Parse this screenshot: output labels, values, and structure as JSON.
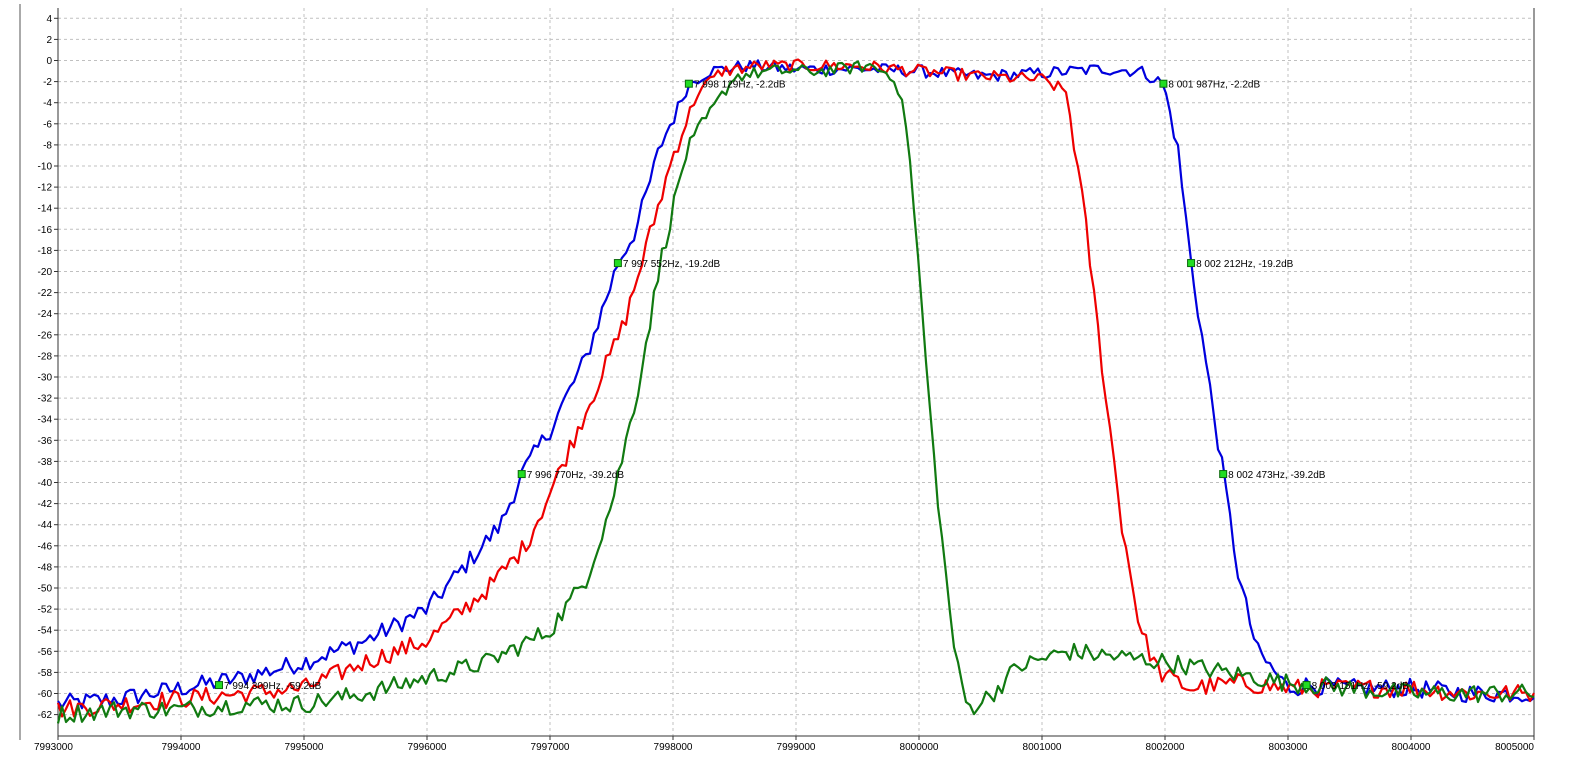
{
  "chart_data": {
    "type": "line",
    "title": "",
    "xlabel": "",
    "ylabel": "",
    "xlim": [
      7993000,
      8005000
    ],
    "ylim": [
      -64,
      5
    ],
    "grid": true,
    "legend": "none",
    "x_ticks": [
      "7993000",
      "7994000",
      "7995000",
      "7996000",
      "7997000",
      "7998000",
      "7999000",
      "8000000",
      "8001000",
      "8002000",
      "8003000",
      "8004000",
      "8005000"
    ],
    "y_ticks": [
      "4",
      "2",
      "0",
      "-2",
      "-4",
      "-6",
      "-8",
      "-10",
      "-12",
      "-14",
      "-16",
      "-18",
      "-20",
      "-22",
      "-24",
      "-26",
      "-28",
      "-30",
      "-32",
      "-34",
      "-36",
      "-38",
      "-40",
      "-42",
      "-44",
      "-46",
      "-48",
      "-50",
      "-52",
      "-54",
      "-56",
      "-58",
      "-60",
      "-62"
    ],
    "colors": {
      "blue": "#0000dd",
      "red": "#ee0000",
      "green": "#117a11",
      "grid": "#c0c0c0",
      "marker": "#22dd22"
    },
    "series": [
      {
        "color_key": "blue",
        "points": [
          [
            7993000,
            -61
          ],
          [
            7993500,
            -60.5
          ],
          [
            7994000,
            -59.5
          ],
          [
            7994500,
            -58.5
          ],
          [
            7995000,
            -57
          ],
          [
            7995500,
            -55
          ],
          [
            7996000,
            -52
          ],
          [
            7996300,
            -48
          ],
          [
            7996600,
            -44
          ],
          [
            7996770,
            -39.2
          ],
          [
            7997000,
            -35
          ],
          [
            7997300,
            -28
          ],
          [
            7997552,
            -19.2
          ],
          [
            7997700,
            -16
          ],
          [
            7997900,
            -8
          ],
          [
            7998129,
            -2.2
          ],
          [
            7998300,
            -1
          ],
          [
            7998600,
            -0.5
          ],
          [
            7999000,
            -0.8
          ],
          [
            7999500,
            -0.8
          ],
          [
            8000000,
            -1
          ],
          [
            8000500,
            -1.5
          ],
          [
            8001000,
            -1.2
          ],
          [
            8001500,
            -0.8
          ],
          [
            8001800,
            -1
          ],
          [
            8001987,
            -2.2
          ],
          [
            8002100,
            -8
          ],
          [
            8002212,
            -19.2
          ],
          [
            8002350,
            -30
          ],
          [
            8002473,
            -39.2
          ],
          [
            8002600,
            -49
          ],
          [
            8002750,
            -56
          ],
          [
            8003000,
            -59.5
          ],
          [
            8003151,
            -59.2
          ],
          [
            8003500,
            -59.5
          ],
          [
            8004000,
            -59.5
          ],
          [
            8004500,
            -60
          ],
          [
            8005000,
            -60
          ]
        ]
      },
      {
        "color_key": "red",
        "points": [
          [
            7993000,
            -61.5
          ],
          [
            7993500,
            -61
          ],
          [
            7994000,
            -60.5
          ],
          [
            7994500,
            -60
          ],
          [
            7995000,
            -59.5
          ],
          [
            7995500,
            -57
          ],
          [
            7996000,
            -55
          ],
          [
            7996500,
            -50
          ],
          [
            7996800,
            -46
          ],
          [
            7997000,
            -41
          ],
          [
            7997300,
            -33
          ],
          [
            7997600,
            -25
          ],
          [
            7997800,
            -17
          ],
          [
            7998000,
            -9
          ],
          [
            7998200,
            -3
          ],
          [
            7998400,
            -1
          ],
          [
            7998700,
            -0.5
          ],
          [
            7999000,
            -0.5
          ],
          [
            7999500,
            -0.5
          ],
          [
            8000000,
            -1
          ],
          [
            8000500,
            -1.5
          ],
          [
            8001000,
            -1.8
          ],
          [
            8001200,
            -3
          ],
          [
            8001350,
            -15
          ],
          [
            8001500,
            -30
          ],
          [
            8001650,
            -44
          ],
          [
            8001800,
            -54
          ],
          [
            8001950,
            -58
          ],
          [
            8002200,
            -59.5
          ],
          [
            8002600,
            -59
          ],
          [
            8003000,
            -59.5
          ],
          [
            8003500,
            -59.5
          ],
          [
            8004000,
            -59.5
          ],
          [
            8004500,
            -60
          ],
          [
            8005000,
            -60
          ]
        ]
      },
      {
        "color_key": "green",
        "points": [
          [
            7993000,
            -62
          ],
          [
            7993500,
            -61.5
          ],
          [
            7994000,
            -61.5
          ],
          [
            7994500,
            -61
          ],
          [
            7995000,
            -61
          ],
          [
            7995500,
            -60
          ],
          [
            7996000,
            -58.5
          ],
          [
            7996500,
            -57
          ],
          [
            7997000,
            -54
          ],
          [
            7997300,
            -49
          ],
          [
            7997500,
            -42
          ],
          [
            7997700,
            -32
          ],
          [
            7997900,
            -19
          ],
          [
            7998100,
            -9
          ],
          [
            7998300,
            -5
          ],
          [
            7998500,
            -1.5
          ],
          [
            7998800,
            -1
          ],
          [
            7999200,
            -1
          ],
          [
            7999600,
            -0.5
          ],
          [
            7999800,
            -1.5
          ],
          [
            7999900,
            -6
          ],
          [
            8000000,
            -20
          ],
          [
            8000100,
            -35
          ],
          [
            8000200,
            -47
          ],
          [
            8000300,
            -57
          ],
          [
            8000400,
            -61.5
          ],
          [
            8000600,
            -60
          ],
          [
            8000800,
            -57.5
          ],
          [
            8001200,
            -56
          ],
          [
            8001600,
            -56.5
          ],
          [
            8002000,
            -57
          ],
          [
            8002500,
            -58
          ],
          [
            8003000,
            -59
          ],
          [
            8003500,
            -59.5
          ],
          [
            8004000,
            -60
          ],
          [
            8004500,
            -60
          ],
          [
            8005000,
            -60
          ]
        ]
      }
    ],
    "markers": [
      {
        "x": 7998129,
        "y": -2.2,
        "label": "7 998 129Hz, -2.2dB"
      },
      {
        "x": 8001987,
        "y": -2.2,
        "label": "8 001 987Hz, -2.2dB"
      },
      {
        "x": 7997552,
        "y": -19.2,
        "label": "7 997 552Hz, -19.2dB"
      },
      {
        "x": 8002212,
        "y": -19.2,
        "label": "8 002 212Hz, -19.2dB"
      },
      {
        "x": 7996770,
        "y": -39.2,
        "label": "7 996 770Hz, -39.2dB"
      },
      {
        "x": 8002473,
        "y": -39.2,
        "label": "8 002 473Hz, -39.2dB"
      },
      {
        "x": 7994309,
        "y": -59.2,
        "label": "7 994 309Hz, -59.2dB"
      },
      {
        "x": 8003151,
        "y": -59.2,
        "label": "8 003 151Hz, -59.2dB"
      }
    ]
  }
}
